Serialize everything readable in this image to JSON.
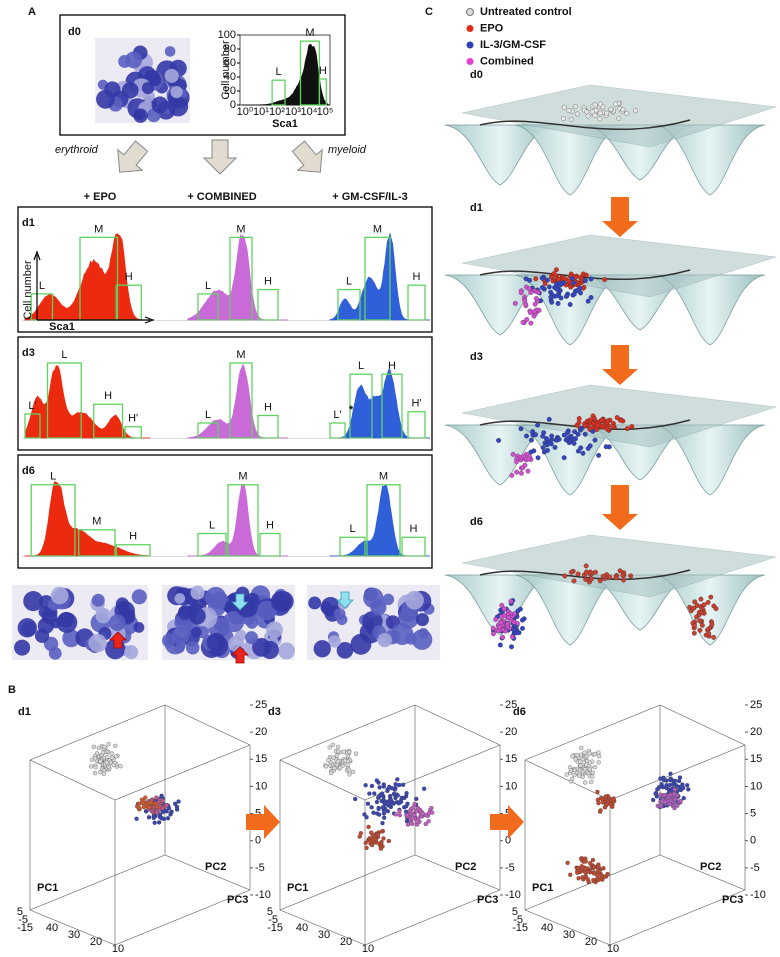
{
  "panel_a": {
    "label": "A",
    "d0": {
      "label": "d0",
      "histogram": {
        "y_label": "Cell number",
        "x_label": "Sca1",
        "yticks": [
          0,
          20,
          40,
          60,
          80,
          100
        ],
        "xticks": [
          "10⁰",
          "10¹",
          "10²",
          "10³",
          "10⁴",
          "10⁵"
        ],
        "gates": [
          "L",
          "M",
          "H"
        ]
      }
    },
    "arrows": [
      "erythroid",
      "myeloid"
    ],
    "conditions": [
      "+ EPO",
      "+ COMBINED",
      "+ GM-CSF/IL-3"
    ],
    "rows": [
      {
        "label": "d1",
        "y_label": "Cell number",
        "x_label": "Sca1",
        "gates": [
          [
            "L",
            "M",
            "H"
          ],
          [
            "L",
            "M",
            "H"
          ],
          [
            "L",
            "M",
            "H"
          ]
        ]
      },
      {
        "label": "d3",
        "annotation": "*",
        "gates": [
          [
            "L'",
            "L",
            "H",
            "H'"
          ],
          [
            "L",
            "M",
            "H"
          ],
          [
            "L'",
            "L",
            "H",
            "H'"
          ]
        ]
      },
      {
        "label": "d6",
        "gates": [
          [
            "L",
            "M",
            "H"
          ],
          [
            "L",
            "M",
            "H"
          ],
          [
            "L",
            "M",
            "H"
          ]
        ]
      }
    ]
  },
  "panel_c": {
    "label": "C",
    "legend": [
      "Untreated control",
      "EPO",
      "IL-3/GM-CSF",
      "Combined"
    ],
    "stages": [
      "d0",
      "d1",
      "d3",
      "d6"
    ]
  },
  "panel_b": {
    "label": "B",
    "plots": [
      "d1",
      "d3",
      "d6"
    ],
    "axis_labels": [
      "PC1",
      "PC2",
      "PC3"
    ],
    "z_ticks": [
      25,
      20,
      15,
      10,
      5,
      0,
      -5,
      -10
    ],
    "x_ticks": [
      40,
      30,
      20,
      10
    ],
    "y_ticks": [
      5,
      -5,
      -15
    ]
  }
}
